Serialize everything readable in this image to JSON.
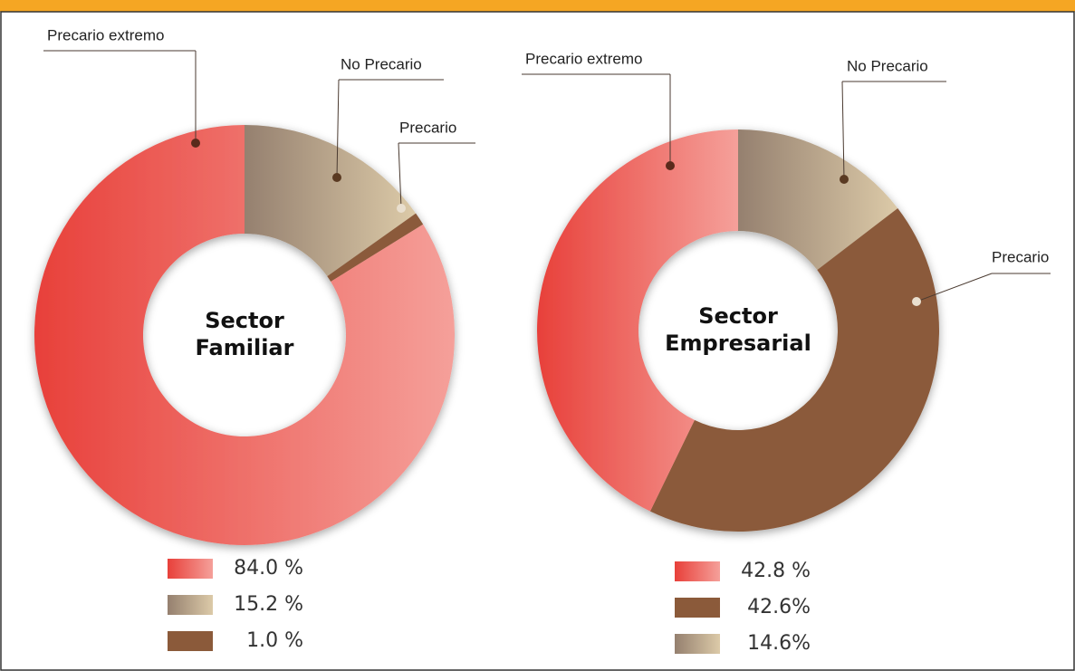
{
  "chart_data": [
    {
      "type": "donut",
      "title": "Sector Familiar",
      "categories": [
        "No Precario",
        "Precario",
        "Precario extremo"
      ],
      "values": [
        15.2,
        1.0,
        84.0
      ],
      "value_labels": [
        "15.2 %",
        "1.0 %",
        "84.0 %"
      ],
      "colors": [
        "#b7a38d",
        "#8b5a3a",
        "#ee6a62"
      ]
    },
    {
      "type": "donut",
      "title": "Sector Empresarial",
      "categories": [
        "No Precario",
        "Precario",
        "Precario extremo"
      ],
      "values": [
        14.6,
        42.6,
        42.8
      ],
      "value_labels": [
        "14.6%",
        "42.6%",
        "42.8 %"
      ],
      "colors": [
        "#b7a38d",
        "#8b5a3a",
        "#ee6a62"
      ]
    }
  ]
}
